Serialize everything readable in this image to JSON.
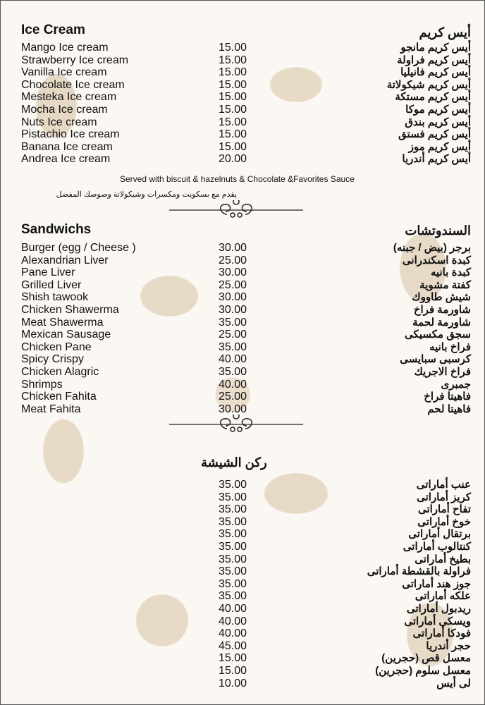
{
  "ice_cream": {
    "title_en": "Ice Cream",
    "title_ar": "أيس كريم",
    "items": [
      {
        "en": "Mango Ice cream",
        "price": "15.00",
        "ar": "أيس كريم مانجو"
      },
      {
        "en": "Strawberry Ice cream",
        "price": "15.00",
        "ar": "أيس كريم فراولة"
      },
      {
        "en": "Vanilla Ice cream",
        "price": "15.00",
        "ar": "أيس كريم فانيليا"
      },
      {
        "en": "Chocolate Ice cream",
        "price": "15.00",
        "ar": "أيس كريم شيكولاتة"
      },
      {
        "en": "Mesteka Ice cream",
        "price": "15.00",
        "ar": "أيس كريم مستكة"
      },
      {
        "en": "Mocha Ice cream",
        "price": "15.00",
        "ar": "أيس كريم موكا"
      },
      {
        "en": "Nuts Ice cream",
        "price": "15.00",
        "ar": "أيس كريم بندق"
      },
      {
        "en": "Pistachio Ice cream",
        "price": "15.00",
        "ar": "أيس كريم فستق"
      },
      {
        "en": "Banana Ice cream",
        "price": "15.00",
        "ar": "أيس كريم موز"
      },
      {
        "en": "Andrea Ice cream",
        "price": "20.00",
        "ar": "أيس كريم أندريا"
      }
    ],
    "note_en": "Served with biscuit & hazelnuts & Chocolate &Favorites Sauce",
    "note_ar": "يقدم مع بسكويت ومكسرات وشيكولاتة وصوصك المفضل"
  },
  "sandwiches": {
    "title_en": "Sandwichs",
    "title_ar": "السندوتشات",
    "items": [
      {
        "en": "Burger (egg / Cheese )",
        "price": "30.00",
        "ar": "برجر (بيض / جبنه)"
      },
      {
        "en": "Alexandrian Liver",
        "price": "25.00",
        "ar": "كبدة اسكندرانى"
      },
      {
        "en": "Pane Liver",
        "price": "30.00",
        "ar": "كبدة بانيه"
      },
      {
        "en": "Grilled Liver",
        "price": "25.00",
        "ar": "كفتة مشوية"
      },
      {
        "en": "Shish tawook",
        "price": "30.00",
        "ar": "شيش طاووك"
      },
      {
        "en": "Chicken Shawerma",
        "price": "30.00",
        "ar": "شاورمة فراخ"
      },
      {
        "en": "Meat Shawerma",
        "price": "35.00",
        "ar": "شاورمة لحمة"
      },
      {
        "en": "Mexican Sausage",
        "price": "25.00",
        "ar": "سجق مكسيكى"
      },
      {
        "en": "Chicken Pane",
        "price": "35.00",
        "ar": "فراخ بانيه"
      },
      {
        "en": "Spicy Crispy",
        "price": "40.00",
        "ar": "كرسبى سبايسى"
      },
      {
        "en": "Chicken Alagric",
        "price": "35.00",
        "ar": "فراخ الاجريك"
      },
      {
        "en": "Shrimps",
        "price": "40.00",
        "ar": "جمبرى"
      },
      {
        "en": "Chicken Fahita",
        "price": "25.00",
        "ar": "فاهيتا فراخ"
      },
      {
        "en": "Meat Fahita",
        "price": "30.00",
        "ar": "فاهيتا لحم"
      }
    ]
  },
  "shisha": {
    "title_ar": "ركن الشيشة",
    "items": [
      {
        "price": "35.00",
        "ar": "عنب أماراتى"
      },
      {
        "price": "35.00",
        "ar": "كريز أماراتى"
      },
      {
        "price": "35.00",
        "ar": "تفاح أماراتى"
      },
      {
        "price": "35.00",
        "ar": "خوخ أماراتى"
      },
      {
        "price": "35.00",
        "ar": "برتقال أماراتى"
      },
      {
        "price": "35.00",
        "ar": "كنتالوب أماراتى"
      },
      {
        "price": "35.00",
        "ar": "بطيخ أماراتى"
      },
      {
        "price": "35.00",
        "ar": "فراولة بالقشطة أماراتى"
      },
      {
        "price": "35.00",
        "ar": "جوز هند أماراتى"
      },
      {
        "price": "35.00",
        "ar": "علكه أماراتى"
      },
      {
        "price": "40.00",
        "ar": "ريدبول أماراتى"
      },
      {
        "price": "40.00",
        "ar": "ويسكى أماراتى"
      },
      {
        "price": "40.00",
        "ar": "فودكا أماراتى"
      },
      {
        "price": "45.00",
        "ar": "حجر أندريا"
      },
      {
        "price": "15.00",
        "ar": "معسل قص (حجرين)"
      },
      {
        "price": "15.00",
        "ar": "معسل سلوم (حجرين)"
      },
      {
        "price": "10.00",
        "ar": "لى أيس"
      }
    ]
  },
  "colors": {
    "background": "#fbf8f3",
    "pattern": "#decdb4",
    "text": "#111111"
  }
}
